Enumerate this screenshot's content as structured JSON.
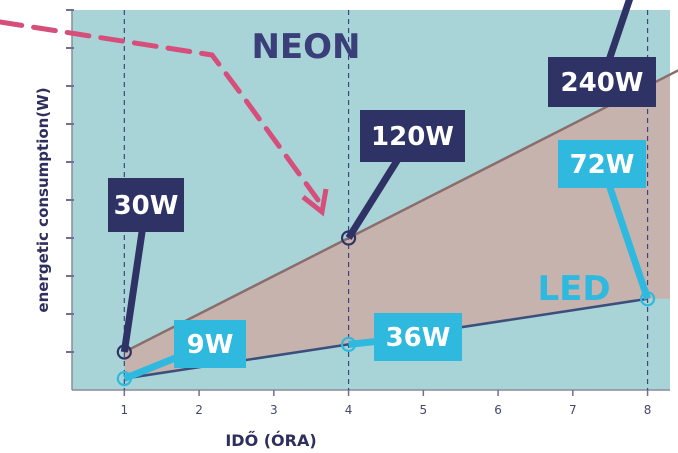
{
  "chart_data": {
    "type": "line",
    "title": "",
    "xlabel": "IDŐ (ÓRA)",
    "ylabel": "energetic consumption(W)",
    "x": [
      1,
      2,
      3,
      4,
      5,
      6,
      7,
      8
    ],
    "xlim": [
      0.3,
      8.3
    ],
    "ylim": [
      0,
      300
    ],
    "grid": false,
    "series": [
      {
        "name": "NEON",
        "x": [
          1,
          4,
          8
        ],
        "values": [
          30,
          120,
          240
        ],
        "color": "#8a6e6e"
      },
      {
        "name": "LED",
        "x": [
          1,
          4,
          8
        ],
        "values": [
          9,
          36,
          72
        ],
        "color": "#3a4f7c"
      }
    ],
    "annotations": [
      {
        "label": "30W",
        "x": 1,
        "y": 30,
        "series": "NEON",
        "style": "dark"
      },
      {
        "label": "120W",
        "x": 4,
        "y": 120,
        "series": "NEON",
        "style": "dark"
      },
      {
        "label": "240W",
        "x": 8,
        "y": 240,
        "series": "NEON",
        "style": "dark"
      },
      {
        "label": "9W",
        "x": 1,
        "y": 9,
        "series": "LED",
        "style": "light"
      },
      {
        "label": "36W",
        "x": 4,
        "y": 36,
        "series": "LED",
        "style": "light"
      },
      {
        "label": "72W",
        "x": 8,
        "y": 72,
        "series": "LED",
        "style": "light"
      }
    ],
    "colors": {
      "neon_region": "#c7b3ad",
      "led_region": "#a8d4d8",
      "neon_label": "#3a3f7a",
      "led_label": "#2fb9df",
      "dark_callout": "#2e3264",
      "light_callout": "#2fb9df",
      "arrow": "#d64e7a",
      "guide": "#3e4480"
    }
  }
}
